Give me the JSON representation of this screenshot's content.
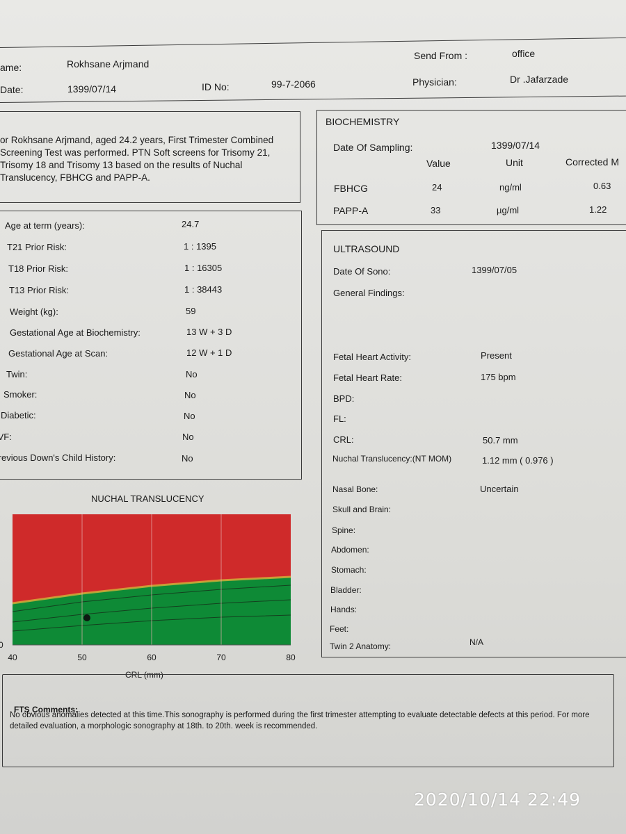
{
  "header": {
    "name_label": "ame:",
    "name_value": "Rokhsane Arjmand",
    "date_label": "Date:",
    "date_value": "1399/07/14",
    "id_label": "ID No:",
    "id_value": "99-7-2066",
    "send_from_label": "Send From :",
    "send_from_value": "office",
    "physician_label": "Physician:",
    "physician_value": "Dr .Jafarzade"
  },
  "intro_text": "or Rokhsane Arjmand, aged 24.2 years, First Trimester Combined Screening Test was performed. PTN Soft screens for Trisomy 21, Trisomy 18 and Trisomy 13 based on the results of Nuchal Translucency, FBHCG and PAPP-A.",
  "patient_info": [
    {
      "label": "Age at term (years):",
      "value": "24.7"
    },
    {
      "label": "T21 Prior Risk:",
      "value": "1 : 1395"
    },
    {
      "label": "T18 Prior Risk:",
      "value": "1 : 16305"
    },
    {
      "label": "T13 Prior Risk:",
      "value": "1 : 38443"
    },
    {
      "label": "Weight (kg):",
      "value": "59"
    },
    {
      "label": "Gestational Age at Biochemistry:",
      "value": "13 W + 3 D"
    },
    {
      "label": "Gestational Age at Scan:",
      "value": "12 W + 1 D"
    },
    {
      "label": "Twin:",
      "value": "No"
    },
    {
      "label": "Smoker:",
      "value": "No"
    },
    {
      "label": "Diabetic:",
      "value": "No"
    },
    {
      "label": "IVF:",
      "value": "No"
    },
    {
      "label": "Previous Down's Child History:",
      "value": "No"
    }
  ],
  "biochemistry": {
    "title": "BIOCHEMISTRY",
    "date_label": "Date Of Sampling:",
    "date_value": "1399/07/14",
    "col_value": "Value",
    "col_unit": "Unit",
    "col_corrected": "Corrected M",
    "rows": [
      {
        "name": "FBHCG",
        "value": "24",
        "unit": "ng/ml",
        "corrected": "0.63"
      },
      {
        "name": "PAPP-A",
        "value": "33",
        "unit": "µg/ml",
        "corrected": "1.22"
      }
    ]
  },
  "ultrasound": {
    "title": "ULTRASOUND",
    "rows": [
      {
        "label": "Date Of Sono:",
        "value": "1399/07/05"
      },
      {
        "label": "General Findings:",
        "value": ""
      },
      {
        "label": "Fetal Heart Activity:",
        "value": "Present"
      },
      {
        "label": "Fetal Heart Rate:",
        "value": "175  bpm"
      },
      {
        "label": "BPD:",
        "value": ""
      },
      {
        "label": "FL:",
        "value": ""
      },
      {
        "label": "CRL:",
        "value": "50.7  mm"
      },
      {
        "label": "Nuchal Translucency:(NT MOM)",
        "value": "1.12  mm ( 0.976 )"
      },
      {
        "label": "Nasal Bone:",
        "value": "Uncertain"
      },
      {
        "label": "Skull and Brain:",
        "value": ""
      },
      {
        "label": "Spine:",
        "value": ""
      },
      {
        "label": "Abdomen:",
        "value": ""
      },
      {
        "label": "Stomach:",
        "value": ""
      },
      {
        "label": "Bladder:",
        "value": ""
      },
      {
        "label": "Hands:",
        "value": ""
      },
      {
        "label": "Feet:",
        "value": ""
      },
      {
        "label": "Twin 2 Anatomy:",
        "value": "N/A"
      }
    ]
  },
  "chart_data": {
    "type": "area",
    "title": "NUCHAL TRANSLUCENCY",
    "xlabel": "CRL (mm)",
    "ylabel": "",
    "xlim": [
      40,
      80
    ],
    "x_ticks": [
      "40",
      "50",
      "60",
      "70",
      "80"
    ],
    "y_tick_partial": "0",
    "regions": [
      {
        "name": "",
        "color": "#cf2a2a"
      },
      {
        "name": "",
        "color": "#0e8a36"
      }
    ],
    "boundary_x": [
      40,
      50,
      60,
      70,
      80
    ],
    "patient_point": {
      "x": 50.7
    },
    "grid": true
  },
  "comments": {
    "title": "FTS Comments:",
    "text": "No obvious anomalies detected at this time.This sonography is performed during the first trimester attempting to evaluate detectable defects at this period. For more detailed evaluation, a morphologic sonography at 18th. to 20th. week is recommended."
  },
  "timestamp": "2020/10/14  22:49"
}
